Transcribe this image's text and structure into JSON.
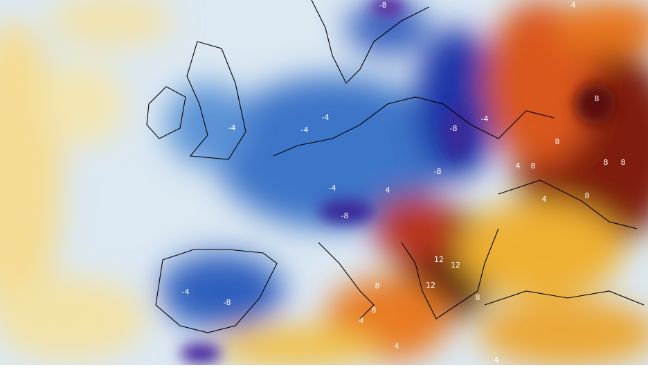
{
  "map": {
    "contour_labels": [
      "-8",
      "4",
      "-4",
      "-4",
      "-4",
      "-8",
      "-4",
      "8",
      "8",
      "4",
      "8",
      "8",
      "8",
      "-8",
      "-4",
      "4",
      "-8",
      "8",
      "4",
      "-4",
      "-8",
      "12",
      "12",
      "12",
      "8",
      "8",
      "4",
      "4",
      "4",
      "8"
    ]
  }
}
